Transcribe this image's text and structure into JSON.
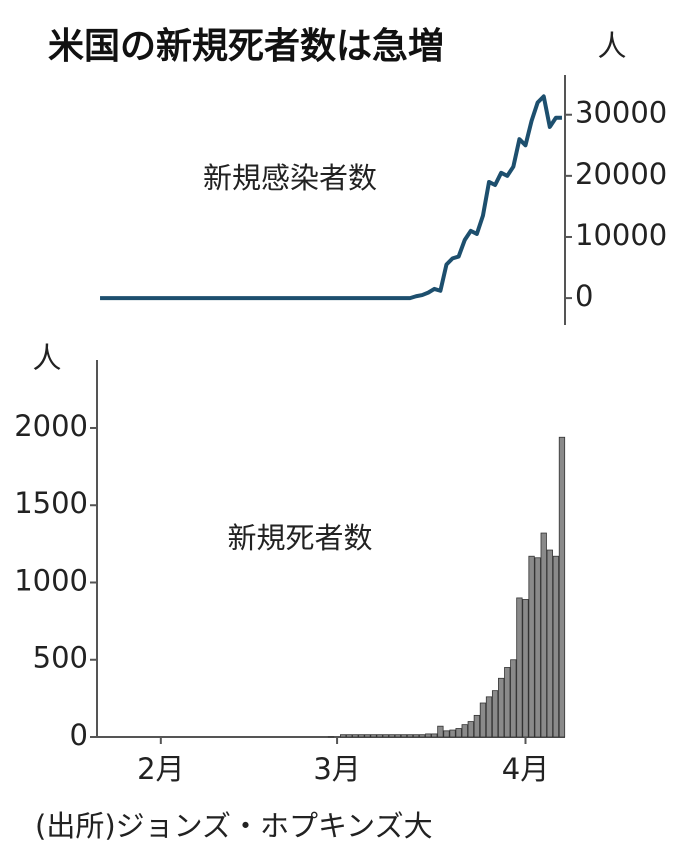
{
  "title": "米国の新規死者数は急増",
  "source": "(出所)ジョンズ・ホプキンズ大",
  "chart_data": [
    {
      "type": "line",
      "annotation": "新規感染者数",
      "y_unit": "人",
      "y_axis_position": "right",
      "color": "#1d4f6e",
      "values": [
        0,
        0,
        0,
        0,
        0,
        0,
        0,
        0,
        0,
        0,
        0,
        0,
        0,
        0,
        0,
        0,
        0,
        0,
        0,
        0,
        0,
        0,
        0,
        0,
        0,
        0,
        0,
        0,
        0,
        0,
        0,
        0,
        0,
        0,
        0,
        0,
        0,
        0,
        0,
        0,
        0,
        0,
        0,
        0,
        0,
        0,
        0,
        0,
        0,
        0,
        0,
        0,
        300,
        500,
        900,
        1500,
        1200,
        5500,
        6500,
        6800,
        9500,
        11000,
        10500,
        13500,
        19000,
        18500,
        20500,
        20000,
        21500,
        26000,
        25000,
        29000,
        32000,
        33000,
        28000,
        29500,
        29500
      ],
      "ylim": [
        -4400,
        36500
      ],
      "yticks": [
        0,
        10000,
        20000,
        30000
      ]
    },
    {
      "type": "bar",
      "annotation": "新規死者数",
      "y_unit": "人",
      "y_axis_position": "left",
      "color": "#8a8a8a",
      "categories": [
        null,
        null,
        null,
        null,
        null,
        null,
        null,
        null,
        null,
        null,
        "2月",
        null,
        null,
        null,
        null,
        null,
        null,
        null,
        null,
        null,
        null,
        null,
        null,
        null,
        null,
        null,
        null,
        null,
        null,
        null,
        null,
        null,
        null,
        null,
        null,
        null,
        null,
        null,
        null,
        "3月",
        null,
        null,
        null,
        null,
        null,
        null,
        null,
        null,
        null,
        null,
        null,
        null,
        null,
        null,
        null,
        null,
        null,
        null,
        null,
        null,
        null,
        null,
        null,
        null,
        null,
        null,
        null,
        null,
        null,
        null,
        "4月",
        null,
        null,
        null,
        null,
        null,
        null
      ],
      "values": [
        0,
        0,
        0,
        0,
        0,
        0,
        0,
        0,
        0,
        0,
        0,
        0,
        0,
        0,
        0,
        0,
        0,
        0,
        0,
        0,
        0,
        0,
        0,
        0,
        0,
        0,
        0,
        0,
        0,
        0,
        0,
        0,
        0,
        0,
        0,
        0,
        0,
        0,
        1,
        0,
        15,
        15,
        15,
        15,
        15,
        15,
        15,
        15,
        15,
        15,
        15,
        15,
        15,
        15,
        20,
        20,
        70,
        40,
        45,
        55,
        80,
        100,
        140,
        220,
        260,
        300,
        380,
        450,
        500,
        900,
        890,
        1170,
        1160,
        1320,
        1210,
        1170,
        1940
      ],
      "ylim": [
        0,
        2440
      ],
      "yticks": [
        0,
        500,
        1000,
        1500,
        2000
      ]
    }
  ]
}
